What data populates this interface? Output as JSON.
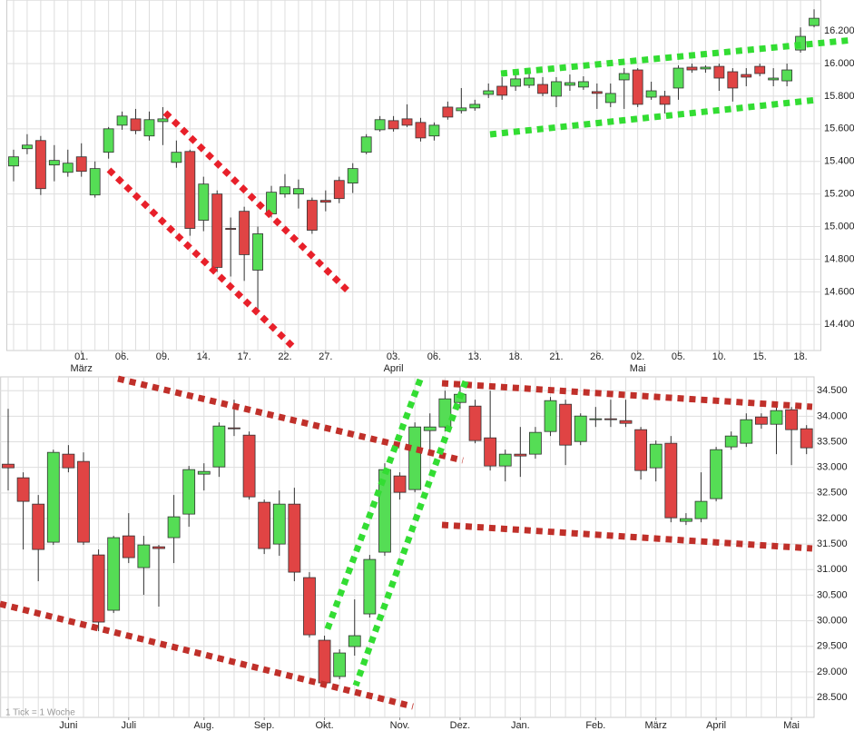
{
  "chart_data": [
    {
      "type": "candlestick",
      "categories": [
        null,
        null,
        null,
        null,
        null,
        "01.",
        null,
        null,
        "06.",
        null,
        null,
        "09.",
        null,
        null,
        "14.",
        null,
        null,
        "17.",
        null,
        null,
        "22.",
        null,
        null,
        "27.",
        null,
        null,
        null,
        null,
        "03.",
        null,
        null,
        "06.",
        null,
        null,
        "13.",
        null,
        null,
        "18.",
        null,
        null,
        "21.",
        null,
        null,
        "26.",
        null,
        null,
        "02.",
        null,
        null,
        "05.",
        null,
        null,
        "10.",
        null,
        null,
        "15.",
        null,
        null,
        "18.",
        null
      ],
      "month_labels": [
        null,
        null,
        null,
        null,
        null,
        "März",
        null,
        null,
        null,
        null,
        null,
        null,
        null,
        null,
        null,
        null,
        null,
        null,
        null,
        null,
        null,
        null,
        null,
        null,
        null,
        null,
        null,
        null,
        "April",
        null,
        null,
        null,
        null,
        null,
        null,
        null,
        null,
        null,
        null,
        null,
        null,
        null,
        null,
        null,
        null,
        null,
        "Mai",
        null,
        null,
        null,
        null,
        null,
        null,
        null,
        null,
        null,
        null,
        null,
        null,
        null
      ],
      "open": [
        15372,
        15478,
        15528,
        15378,
        15333,
        15428,
        15194,
        15456,
        15622,
        15661,
        15556,
        15644,
        15394,
        15461,
        15039,
        15200,
        14989,
        15094,
        14733,
        15078,
        15200,
        15200,
        15161,
        15161,
        15283,
        15267,
        15456,
        15594,
        15650,
        15661,
        15639,
        15556,
        15733,
        15711,
        15728,
        15811,
        15861,
        15861,
        15867,
        15872,
        15800,
        15867,
        15856,
        15828,
        15761,
        15900,
        15961,
        15794,
        15800,
        15850,
        15978,
        15967,
        15983,
        15950,
        15933,
        15983,
        15900,
        15894,
        16083,
        16233
      ],
      "high": [
        15472,
        15567,
        15556,
        15500,
        15472,
        15511,
        15400,
        15611,
        15706,
        15722,
        15706,
        15733,
        15528,
        15472,
        15306,
        15222,
        15056,
        15122,
        15000,
        15250,
        15322,
        15289,
        15178,
        15222,
        15306,
        15389,
        15567,
        15678,
        15678,
        15750,
        15667,
        15639,
        15767,
        15850,
        15778,
        15878,
        15917,
        15933,
        15944,
        15917,
        15917,
        15933,
        15922,
        15878,
        15878,
        15972,
        15972,
        15889,
        15833,
        15989,
        16000,
        15989,
        16000,
        15972,
        15972,
        16000,
        15972,
        16000,
        16222,
        16333
      ],
      "low": [
        15278,
        15444,
        15194,
        15278,
        15306,
        15306,
        15178,
        15417,
        15594,
        15567,
        15528,
        15500,
        15361,
        14944,
        14972,
        14722,
        14694,
        14667,
        14472,
        15056,
        15178,
        15111,
        14956,
        15094,
        15144,
        15206,
        15444,
        15583,
        15583,
        15611,
        15522,
        15528,
        15656,
        15694,
        15711,
        15789,
        15778,
        15833,
        15850,
        15800,
        15733,
        15833,
        15839,
        15722,
        15733,
        15722,
        15733,
        15778,
        15694,
        15778,
        15944,
        15944,
        15833,
        15767,
        15861,
        15922,
        15861,
        15861,
        16067,
        16222
      ],
      "close": [
        15428,
        15500,
        15233,
        15406,
        15389,
        15339,
        15356,
        15600,
        15678,
        15589,
        15656,
        15661,
        15456,
        14989,
        15261,
        14750,
        14983,
        14828,
        14956,
        15211,
        15244,
        15233,
        14978,
        15150,
        15172,
        15356,
        15550,
        15656,
        15600,
        15622,
        15544,
        15622,
        15672,
        15728,
        15750,
        15833,
        15806,
        15906,
        15911,
        15817,
        15889,
        15883,
        15889,
        15817,
        15817,
        15939,
        15750,
        15833,
        15750,
        15972,
        15961,
        15978,
        15911,
        15850,
        15917,
        15939,
        15911,
        15961,
        16167,
        16278
      ],
      "up_color": "#55dd55",
      "down_color": "#e04444",
      "ylim": [
        14240,
        16390
      ],
      "yticks": [
        {
          "value": 14400,
          "label": "14.400"
        },
        {
          "value": 14600,
          "label": "14.600"
        },
        {
          "value": 14800,
          "label": "14.800"
        },
        {
          "value": 15000,
          "label": "15.000"
        },
        {
          "value": 15200,
          "label": "15.200"
        },
        {
          "value": 15400,
          "label": "15.400"
        },
        {
          "value": 15600,
          "label": "15.600"
        },
        {
          "value": 15800,
          "label": "15.800"
        },
        {
          "value": 16000,
          "label": "16.000"
        },
        {
          "value": 16200,
          "label": "16.200"
        }
      ],
      "grid": true
    },
    {
      "type": "candlestick",
      "categories": [
        null,
        null,
        null,
        null,
        "Juni",
        null,
        null,
        null,
        "Juli",
        null,
        null,
        null,
        null,
        "Aug.",
        null,
        null,
        null,
        "Sep.",
        null,
        null,
        null,
        "Okt.",
        null,
        null,
        null,
        null,
        "Nov.",
        null,
        null,
        null,
        "Dez.",
        null,
        null,
        null,
        "Jan.",
        null,
        null,
        null,
        null,
        "Feb.",
        null,
        null,
        null,
        "März",
        null,
        null,
        null,
        "April",
        null,
        null,
        null,
        null,
        "Mai",
        null
      ],
      "open": [
        33062,
        32796,
        32281,
        31536,
        33258,
        33116,
        31287,
        30205,
        31660,
        31039,
        31447,
        31625,
        32086,
        32867,
        33009,
        33772,
        33630,
        32317,
        31500,
        32281,
        30844,
        29619,
        28909,
        29495,
        30134,
        31341,
        32832,
        32565,
        33719,
        33790,
        34269,
        34198,
        33577,
        33027,
        33258,
        33258,
        33701,
        34234,
        33506,
        33932,
        33950,
        33914,
        33737,
        32991,
        33471,
        31944,
        31997,
        32388,
        33400,
        33471,
        33985,
        33843,
        34127,
        33755
      ],
      "high": [
        34145,
        32903,
        32459,
        33346,
        33435,
        33293,
        31394,
        31660,
        32104,
        31660,
        31483,
        32459,
        33027,
        33080,
        33879,
        34323,
        33701,
        32370,
        32548,
        32601,
        30950,
        29708,
        29441,
        30418,
        31287,
        33080,
        32903,
        33879,
        34056,
        34500,
        34589,
        34323,
        34500,
        33346,
        33790,
        33790,
        34376,
        34323,
        34056,
        34181,
        34323,
        34323,
        33790,
        33524,
        33613,
        32104,
        32903,
        33400,
        33701,
        34056,
        34056,
        34181,
        34181,
        33826
      ],
      "low": [
        32548,
        31394,
        30773,
        31483,
        32903,
        31483,
        29796,
        30151,
        31128,
        30506,
        30276,
        31128,
        31838,
        32548,
        32814,
        33613,
        32370,
        31305,
        31270,
        30773,
        29672,
        28731,
        28856,
        29317,
        30063,
        31270,
        32370,
        32512,
        33258,
        33701,
        34145,
        33471,
        32938,
        32725,
        32814,
        33169,
        33613,
        33045,
        33435,
        33790,
        33790,
        33790,
        32761,
        32725,
        31926,
        31873,
        31926,
        32335,
        33346,
        33400,
        33755,
        33258,
        33045,
        33258
      ],
      "close": [
        32991,
        32335,
        31394,
        33293,
        32991,
        31536,
        29974,
        31625,
        31234,
        31483,
        31412,
        32033,
        32956,
        32920,
        33808,
        33755,
        32423,
        31412,
        32281,
        30950,
        29725,
        28785,
        29370,
        29708,
        31199,
        32956,
        32512,
        33790,
        33790,
        34340,
        34429,
        33524,
        33027,
        33258,
        33222,
        33684,
        34305,
        33435,
        34003,
        33950,
        33932,
        33861,
        32938,
        33453,
        32015,
        31997,
        32335,
        33346,
        33613,
        33932,
        33843,
        34110,
        33737,
        33382
      ],
      "up_color": "#55dd55",
      "down_color": "#e04444",
      "ylim": [
        28110,
        34770
      ],
      "yticks": [
        {
          "value": 28500,
          "label": "28.500"
        },
        {
          "value": 29000,
          "label": "29.000"
        },
        {
          "value": 29500,
          "label": "29.500"
        },
        {
          "value": 30000,
          "label": "30.000"
        },
        {
          "value": 30500,
          "label": "30.500"
        },
        {
          "value": 31000,
          "label": "31.000"
        },
        {
          "value": 31500,
          "label": "31.500"
        },
        {
          "value": 32000,
          "label": "32.000"
        },
        {
          "value": 32500,
          "label": "32.500"
        },
        {
          "value": 33000,
          "label": "33.000"
        },
        {
          "value": 33500,
          "label": "33.500"
        },
        {
          "value": 34000,
          "label": "34.000"
        },
        {
          "value": 34500,
          "label": "34.500"
        }
      ],
      "grid": true,
      "note": "1 Tick = 1 Woche"
    }
  ]
}
